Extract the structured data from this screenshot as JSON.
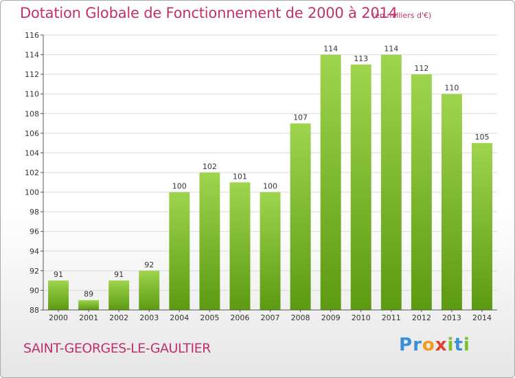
{
  "header": {
    "title": "Dotation Globale de Fonctionnement de 2000 à 2014",
    "subtitle": "(en milliers d'€)"
  },
  "footer": {
    "commune": "SAINT-GEORGES-LE-GAULTIER",
    "logo_letters": [
      "P",
      "r",
      "o",
      "x",
      "i",
      "t",
      "i"
    ],
    "logo_colors": [
      "#3a8fd6",
      "#3a8fd6",
      "#f39a1e",
      "#e0402a",
      "#7bbf2a",
      "#3a8fd6",
      "#7bbf2a"
    ]
  },
  "chart_data": {
    "type": "bar",
    "categories": [
      "2000",
      "2001",
      "2002",
      "2003",
      "2004",
      "2005",
      "2006",
      "2007",
      "2008",
      "2009",
      "2010",
      "2011",
      "2012",
      "2013",
      "2014"
    ],
    "values": [
      91,
      89,
      91,
      92,
      100,
      102,
      101,
      100,
      107,
      114,
      113,
      114,
      112,
      110,
      105
    ],
    "value_labels": [
      "91",
      "89",
      "91",
      "92",
      "100",
      "102",
      "101",
      "100",
      "107",
      "114",
      "113",
      "114",
      "112",
      "110",
      "105"
    ],
    "ylim": [
      88,
      116
    ],
    "yticks": [
      88,
      90,
      92,
      94,
      96,
      98,
      100,
      102,
      104,
      106,
      108,
      110,
      112,
      114,
      116
    ],
    "ytick_labels": [
      "88",
      "90",
      "92",
      "94",
      "96",
      "98",
      "100",
      "102",
      "104",
      "106",
      "108",
      "110",
      "112",
      "114",
      "116"
    ],
    "grid": true,
    "bar_color_top": "#9fd44e",
    "bar_color_bottom": "#5c9a12",
    "grid_color": "#d9d9d9"
  }
}
